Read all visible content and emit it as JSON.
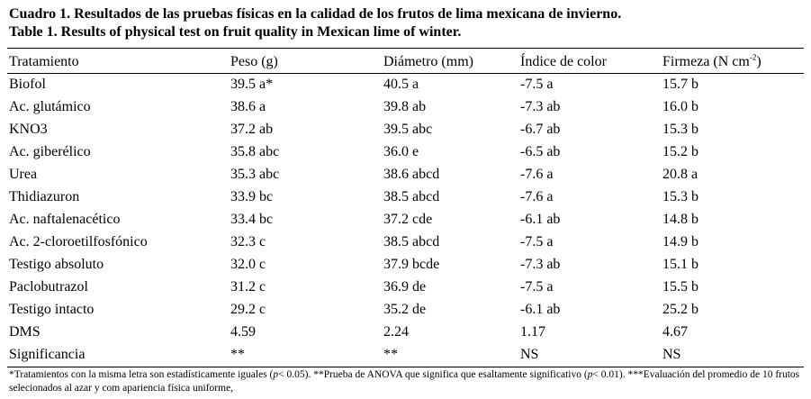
{
  "caption": {
    "line1": "Cuadro 1. Resultados de las pruebas físicas en la calidad de los frutos de lima mexicana de invierno.",
    "line2": "Table 1. Results of physical test on fruit quality in Mexican lime of winter."
  },
  "table": {
    "headers": {
      "tratamiento": "Tratamiento",
      "peso": "Peso (g)",
      "diametro": "Diámetro (mm)",
      "indice": "Índice de color",
      "firmeza_prefix": "Firmeza (N cm",
      "firmeza_sup": "-2",
      "firmeza_suffix": ")"
    },
    "rows": [
      [
        "Biofol",
        "39.5 a*",
        "40.5 a",
        "-7.5 a",
        "15.7 b"
      ],
      [
        "Ac. glutámico",
        "38.6 a",
        "39.8 ab",
        "-7.3 ab",
        "16.0 b"
      ],
      [
        "KNO3",
        "37.2 ab",
        "39.5 abc",
        "-6.7 ab",
        "15.3 b"
      ],
      [
        "Ac. giberélico",
        "35.8 abc",
        "36.0 e",
        "-6.5 ab",
        "15.2 b"
      ],
      [
        "Urea",
        "35.3 abc",
        "38.6 abcd",
        "-7.6 a",
        "20.8 a"
      ],
      [
        "Thidiazuron",
        "33.9 bc",
        "38.5 abcd",
        "-7.6 a",
        "15.3 b"
      ],
      [
        "Ac. naftalenacético",
        "33.4 bc",
        "37.2 cde",
        "-6.1 ab",
        "14.8 b"
      ],
      [
        "Ac. 2-cloroetilfosfónico",
        "32.3 c",
        "38.5 abcd",
        "-7.5 a",
        "14.9 b"
      ],
      [
        "Testigo absoluto",
        "32.0 c",
        "37.9 bcde",
        "-7.3 ab",
        "15.1 b"
      ],
      [
        "Paclobutrazol",
        "31.2 c",
        "36.9 de",
        "-7.5 a",
        "15.5 b"
      ],
      [
        "Testigo intacto",
        "29.2 c",
        "35.2 de",
        "-6.1 ab",
        "25.2 b"
      ],
      [
        "DMS",
        "4.59",
        "2.24",
        "1.17",
        "4.67"
      ],
      [
        "Significancia",
        "**",
        "**",
        "NS",
        "NS"
      ]
    ]
  },
  "footnote": {
    "part1": "*Tratamientos con la misma letra son estadísticamente iguales (",
    "p1": "p",
    "part2": "< 0.05). **Prueba de ANOVA que significa que esaltamente significativo (",
    "p2": "p",
    "part3": "< 0.01). ***Evaluación del promedio de 10 frutos selecionados al azar y com apariencia física uniforme,"
  }
}
